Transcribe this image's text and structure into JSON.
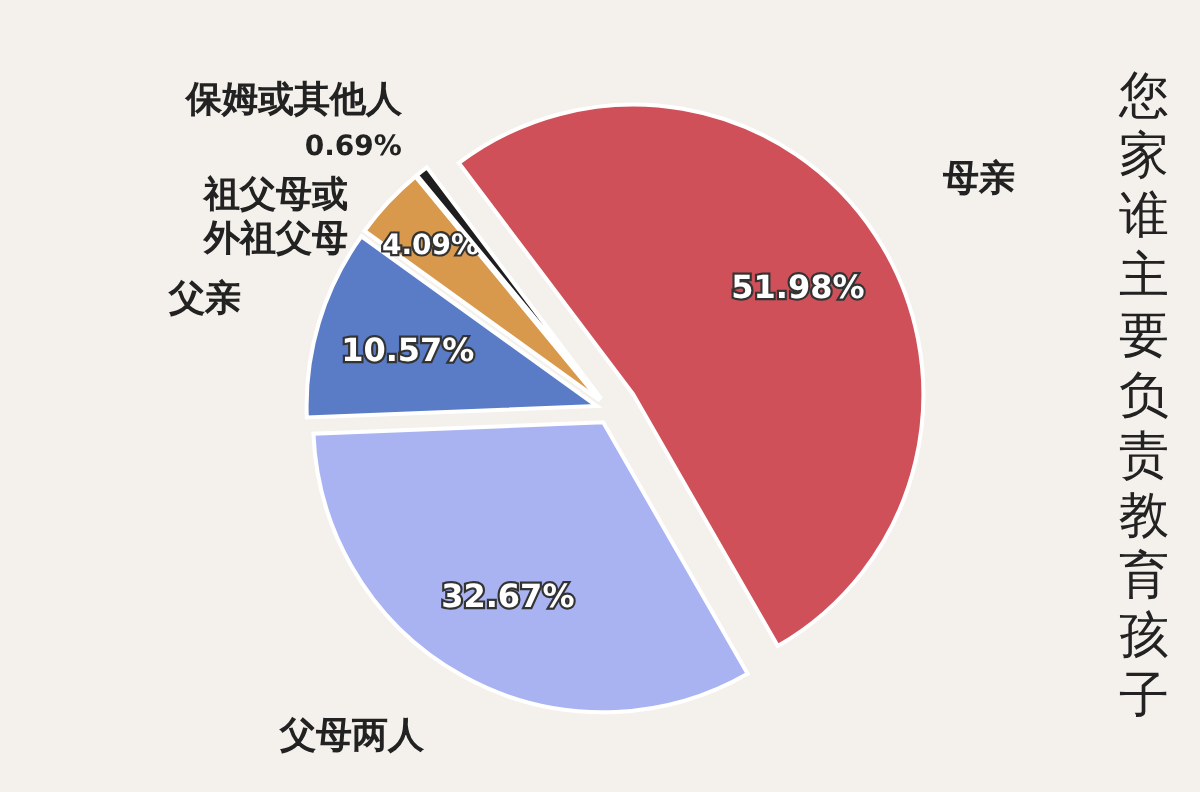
{
  "chart_data": {
    "type": "pie",
    "title": "您家谁主要负责教育孩子",
    "categories": [
      "母亲",
      "父母两人",
      "父亲",
      "祖父母或外祖父母",
      "保姆或其他人"
    ],
    "values": [
      51.98,
      32.67,
      10.57,
      4.09,
      0.69
    ],
    "value_labels": [
      "51.98%",
      "32.67%",
      "10.57%",
      "4.09%",
      "0.69%"
    ],
    "colors": [
      "#cf5058",
      "#a9b3f2",
      "#5a7cc6",
      "#d9994c",
      "#1e1e1e"
    ],
    "legend": false
  }
}
